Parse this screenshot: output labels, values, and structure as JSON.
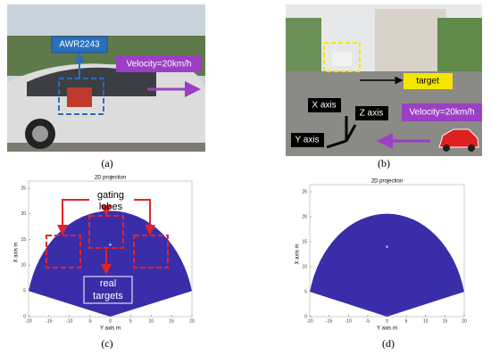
{
  "panels": [
    {
      "label": "(a)",
      "annotations": {
        "sensor": "AWR2243",
        "velocity": "Velocity=20km/h"
      }
    },
    {
      "label": "(b)",
      "annotations": {
        "target": "target",
        "x_axis": "X axis",
        "z_axis": "Z axis",
        "y_axis": "Y axis",
        "velocity": "Velocity=20km/h"
      }
    },
    {
      "label": "(c)",
      "plot": {
        "title": "2D projection",
        "xlabel": "Y axis m",
        "ylabel": "X axis m",
        "xlim": [
          -20,
          20
        ],
        "ylim": [
          0,
          25
        ],
        "xticks": [
          -20,
          -15,
          -10,
          -5,
          0,
          5,
          10,
          15,
          20
        ],
        "yticks": [
          0,
          5,
          10,
          15,
          20,
          25
        ]
      },
      "annotations": {
        "gating_lobes": [
          "gating",
          "lobes"
        ],
        "real_targets": [
          "real",
          "targets"
        ]
      }
    },
    {
      "label": "(d)",
      "plot": {
        "title": "2D projection",
        "xlabel": "Y axis m",
        "ylabel": "X axis m",
        "xlim": [
          -20,
          20
        ],
        "ylim": [
          0,
          25
        ],
        "xticks": [
          -20,
          -15,
          -10,
          -5,
          0,
          5,
          10,
          15,
          20
        ],
        "yticks": [
          0,
          5,
          10,
          15,
          20,
          25
        ]
      }
    }
  ]
}
